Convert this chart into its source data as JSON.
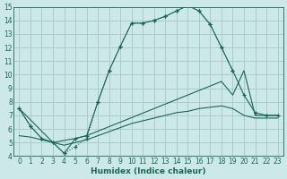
{
  "title": "",
  "xlabel": "Humidex (Indice chaleur)",
  "xlim": [
    -0.5,
    23.5
  ],
  "ylim": [
    4,
    15
  ],
  "xticks": [
    0,
    1,
    2,
    3,
    4,
    5,
    6,
    7,
    8,
    9,
    10,
    11,
    12,
    13,
    14,
    15,
    16,
    17,
    18,
    19,
    20,
    21,
    22,
    23
  ],
  "yticks": [
    4,
    5,
    6,
    7,
    8,
    9,
    10,
    11,
    12,
    13,
    14,
    15
  ],
  "background_color": "#cce8e8",
  "grid_color": "#aacccc",
  "line_color": "#1a6655",
  "line1_x": [
    0,
    1,
    2,
    3,
    4,
    5,
    6,
    7,
    8,
    9,
    10,
    11,
    12,
    13,
    14,
    15,
    16,
    17,
    18,
    19,
    20,
    21,
    22,
    23
  ],
  "line1_y": [
    7.5,
    6.2,
    5.3,
    5.0,
    4.2,
    4.7,
    5.3,
    8.0,
    10.3,
    12.1,
    13.8,
    13.8,
    14.0,
    14.3,
    14.7,
    15.1,
    14.7,
    13.7,
    12.0,
    10.3,
    null,
    null,
    null,
    null
  ],
  "line2_x": [
    0,
    1,
    2,
    3,
    4,
    5,
    6,
    7,
    8,
    9,
    10,
    11,
    12,
    13,
    14,
    15,
    16,
    17,
    18,
    19,
    20,
    21,
    22,
    23
  ],
  "line2_y": [
    7.5,
    6.2,
    5.3,
    5.0,
    4.2,
    5.3,
    5.5,
    8.0,
    10.3,
    12.1,
    13.8,
    13.8,
    14.0,
    14.3,
    14.7,
    15.1,
    14.7,
    13.7,
    12.0,
    10.3,
    8.5,
    7.2,
    7.0,
    7.0
  ],
  "line3_x": [
    0,
    3,
    5,
    6,
    18,
    19,
    20,
    21,
    22,
    23
  ],
  "line3_y": [
    7.5,
    5.0,
    5.3,
    5.5,
    9.5,
    8.5,
    10.3,
    7.0,
    7.0,
    7.0
  ],
  "line4_x": [
    0,
    1,
    2,
    3,
    4,
    5,
    6,
    7,
    8,
    9,
    10,
    11,
    12,
    13,
    14,
    15,
    16,
    17,
    18,
    19,
    20,
    21,
    22,
    23
  ],
  "line4_y": [
    5.5,
    5.4,
    5.2,
    5.0,
    4.8,
    5.0,
    5.2,
    5.5,
    5.8,
    6.1,
    6.4,
    6.6,
    6.8,
    7.0,
    7.2,
    7.3,
    7.5,
    7.6,
    7.7,
    7.5,
    7.0,
    6.8,
    6.8,
    6.8
  ]
}
